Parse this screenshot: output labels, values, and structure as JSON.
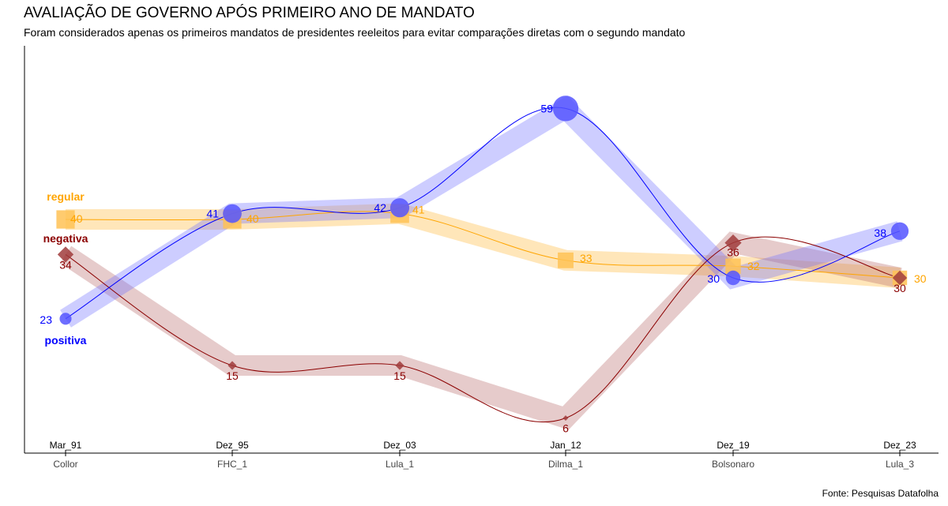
{
  "title": "AVALIAÇÃO DE GOVERNO APÓS PRIMEIRO ANO DE MANDATO",
  "subtitle": "Foram considerados apenas os primeiros mandatos de presidentes reeleitos para evitar comparações diretas com o segundo mandato",
  "source": "Fonte: Pesquisas Datafolha",
  "chart_data": {
    "type": "line",
    "categories": [
      "Mar_91",
      "Dez_95",
      "Dez_03",
      "Jan_12",
      "Dez_19",
      "Dez_23"
    ],
    "sublabels": [
      "Collor",
      "FHC_1",
      "Lula_1",
      "Dilma_1",
      "Bolsonaro",
      "Lula_3"
    ],
    "ylim": [
      0,
      65
    ],
    "series": [
      {
        "name": "regular",
        "color": "#FFA500",
        "marker": "square",
        "values": [
          40,
          40,
          41,
          33,
          32,
          30
        ]
      },
      {
        "name": "negativa",
        "color": "#8B0000",
        "marker": "diamond",
        "values": [
          34,
          15,
          15,
          6,
          36,
          30
        ]
      },
      {
        "name": "positiva",
        "color": "#0000FF",
        "marker": "circle",
        "values": [
          23,
          41,
          42,
          59,
          30,
          38
        ]
      }
    ]
  }
}
